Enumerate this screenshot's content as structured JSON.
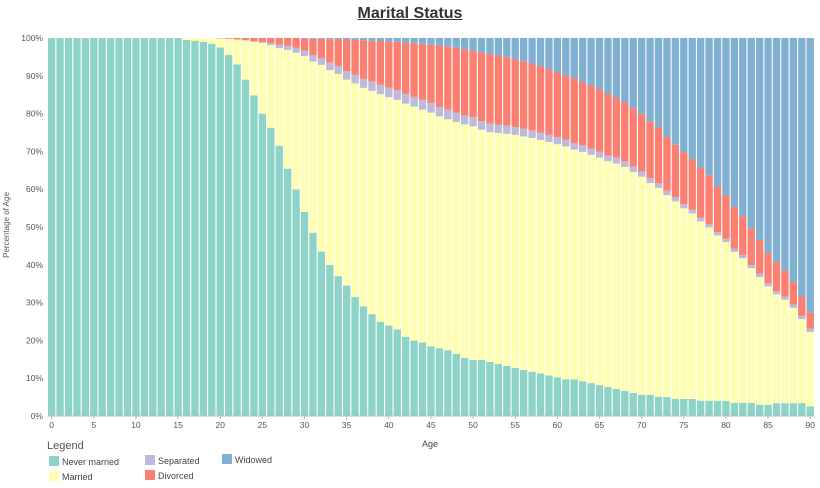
{
  "chart_data": {
    "type": "bar",
    "stacked": true,
    "normalized": true,
    "title": "Marital Status",
    "xlabel": "Age",
    "ylabel": "Percentage of Age",
    "ylim": [
      0,
      100
    ],
    "x_ticks": [
      "0",
      "5",
      "10",
      "15",
      "20",
      "25",
      "30",
      "35",
      "40",
      "45",
      "50",
      "55",
      "60",
      "65",
      "70",
      "75",
      "80",
      "85",
      "90"
    ],
    "y_ticks": [
      "0%",
      "10%",
      "20%",
      "30%",
      "40%",
      "50%",
      "60%",
      "70%",
      "80%",
      "90%",
      "100%"
    ],
    "legend_title": "Legend",
    "legend_position": "bottom-left",
    "categories": [
      0,
      1,
      2,
      3,
      4,
      5,
      6,
      7,
      8,
      9,
      10,
      11,
      12,
      13,
      14,
      15,
      16,
      17,
      18,
      19,
      20,
      21,
      22,
      23,
      24,
      25,
      26,
      27,
      28,
      29,
      30,
      31,
      32,
      33,
      34,
      35,
      36,
      37,
      38,
      39,
      40,
      41,
      42,
      43,
      44,
      45,
      46,
      47,
      48,
      49,
      50,
      51,
      52,
      53,
      54,
      55,
      56,
      57,
      58,
      59,
      60,
      61,
      62,
      63,
      64,
      65,
      66,
      67,
      68,
      69,
      70,
      71,
      72,
      73,
      74,
      75,
      76,
      77,
      78,
      79,
      80,
      81,
      82,
      83,
      84,
      85,
      86,
      87,
      88,
      89,
      90
    ],
    "series": [
      {
        "name": "Never married",
        "color": "#8dd3c7",
        "values": [
          100,
          100,
          100,
          100,
          100,
          100,
          100,
          100,
          100,
          100,
          100,
          100,
          100,
          100,
          100,
          100,
          99.5,
          99.3,
          99,
          98.5,
          97.5,
          95.5,
          93,
          89,
          85,
          80,
          76.5,
          71.5,
          65.5,
          60,
          54,
          48.5,
          43.5,
          40,
          37,
          34.5,
          31.5,
          29,
          27,
          25,
          24,
          23,
          21,
          20,
          19.5,
          18.5,
          18,
          17.5,
          16.5,
          15.5,
          15,
          15,
          14.5,
          14,
          13.5,
          13,
          12.5,
          12,
          11.5,
          11,
          10.5,
          10,
          10,
          9.5,
          9,
          8.5,
          8,
          7.5,
          7,
          6.5,
          6,
          6,
          5.5,
          5.5,
          5,
          5,
          5,
          4.5,
          4.5,
          4.5,
          4.5,
          4,
          4,
          4,
          3.5,
          3.5,
          4,
          4,
          4,
          4,
          3
        ]
      },
      {
        "name": "Married",
        "color": "#ffffb3",
        "values": [
          0,
          0,
          0,
          0,
          0,
          0,
          0,
          0,
          0,
          0,
          0,
          0,
          0,
          0,
          0,
          0,
          0.5,
          0.7,
          1,
          1.5,
          2.4,
          4.3,
          6.6,
          10.4,
          14.2,
          18.7,
          21.9,
          25.8,
          31.4,
          36.2,
          41.2,
          45.3,
          49.4,
          51.5,
          53.5,
          54.5,
          56.5,
          57.8,
          59.2,
          60.3,
          60.5,
          60.9,
          61.8,
          62,
          61.7,
          62,
          61.5,
          61.4,
          61.6,
          62.1,
          62.5,
          61.5,
          61.5,
          62,
          62.5,
          63,
          63.3,
          63.3,
          63.2,
          63.1,
          63.2,
          63.3,
          62.6,
          62.6,
          62.5,
          62.5,
          62.5,
          62.5,
          62.3,
          62,
          61.5,
          60.5,
          59.8,
          58.5,
          57.5,
          56,
          54.5,
          52.5,
          51,
          49,
          47.5,
          45.5,
          44,
          41.5,
          39.5,
          37,
          34,
          32,
          29.5,
          26,
          23
        ]
      },
      {
        "name": "Separated",
        "color": "#bebada",
        "values": [
          0,
          0,
          0,
          0,
          0,
          0,
          0,
          0,
          0,
          0,
          0,
          0,
          0,
          0,
          0,
          0,
          0,
          0,
          0,
          0,
          0,
          0,
          0,
          0,
          0.2,
          0.3,
          0.6,
          0.9,
          1.1,
          1.3,
          1.5,
          1.7,
          1.8,
          2,
          2.1,
          2.2,
          2.3,
          2.4,
          2.5,
          2.5,
          2.6,
          2.6,
          2.6,
          2.6,
          2.6,
          2.5,
          2.5,
          2.5,
          2.5,
          2.4,
          2.4,
          2.3,
          2.3,
          2.2,
          2.2,
          2.1,
          2.1,
          2,
          2,
          2,
          1.9,
          1.9,
          1.8,
          1.8,
          1.7,
          1.7,
          1.6,
          1.6,
          1.5,
          1.5,
          1.4,
          1.4,
          1.3,
          1.3,
          1.2,
          1.2,
          1.1,
          1.1,
          1,
          1,
          1,
          1,
          1,
          1,
          1,
          1,
          1,
          1,
          1,
          1,
          1
        ]
      },
      {
        "name": "Divorced",
        "color": "#fb8072",
        "values": [
          0,
          0,
          0,
          0,
          0,
          0,
          0,
          0,
          0,
          0,
          0,
          0,
          0,
          0,
          0,
          0,
          0,
          0,
          0,
          0,
          0.1,
          0.2,
          0.4,
          0.6,
          0.8,
          1,
          1.3,
          1.8,
          2.1,
          2.6,
          3.2,
          4.3,
          5.1,
          6.2,
          7.1,
          8.4,
          9.2,
          10.2,
          10.8,
          11.6,
          12.2,
          12.8,
          13.6,
          14.2,
          14.9,
          15.5,
          16.3,
          16.8,
          17.2,
          17.6,
          17.8,
          18.4,
          18.6,
          18.6,
          18.4,
          18.4,
          18.3,
          18.2,
          18,
          17.7,
          17.7,
          17.4,
          17.6,
          17.3,
          17.3,
          17.2,
          17,
          16.7,
          16.5,
          16.4,
          16.3,
          16.2,
          16,
          15.5,
          15.3,
          15.3,
          14.9,
          14.7,
          14.3,
          13.5,
          12.9,
          12.5,
          11.8,
          11.3,
          10.5,
          9.5,
          9,
          8,
          7,
          6,
          5
        ]
      },
      {
        "name": "Widowed",
        "color": "#80b1d3",
        "values": [
          0,
          0,
          0,
          0,
          0,
          0,
          0,
          0,
          0,
          0,
          0,
          0,
          0,
          0,
          0,
          0,
          0,
          0,
          0,
          0,
          0,
          0,
          0,
          0,
          0,
          0,
          0,
          0,
          0,
          0,
          0.1,
          0.2,
          0.2,
          0.3,
          0.3,
          0.4,
          0.5,
          0.6,
          0.7,
          0.8,
          0.9,
          1,
          1.2,
          1.4,
          1.5,
          1.8,
          2,
          2.3,
          2.6,
          3,
          3.4,
          3.8,
          4.3,
          4.7,
          5.2,
          5.7,
          6.3,
          6.9,
          7.6,
          8.4,
          9.2,
          10.2,
          11,
          12,
          13,
          14,
          15.5,
          16.5,
          17.9,
          19.7,
          21.4,
          23.8,
          25.6,
          28.7,
          31.1,
          33.5,
          35.5,
          37.9,
          40.4,
          44,
          47.1,
          51,
          54.2,
          58.6,
          62.5,
          67,
          70,
          72,
          75.5,
          80,
          85
        ]
      }
    ]
  }
}
